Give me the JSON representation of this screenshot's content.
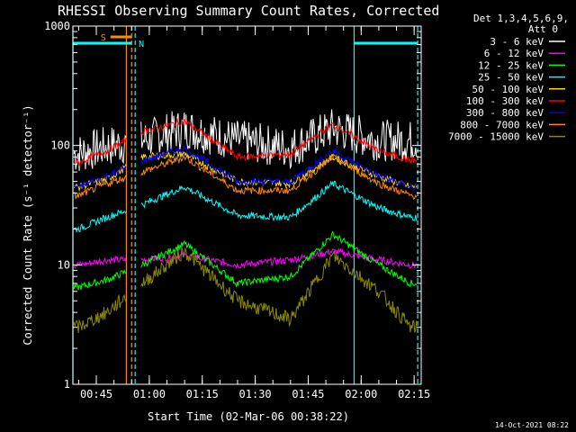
{
  "chart_data": {
    "type": "line",
    "title": "RHESSI Observing Summary Count Rates, Corrected",
    "xlabel": "Start Time (02-Mar-06 00:38:22)",
    "ylabel": "Corrected Count Rate (s⁻¹ detector⁻¹)",
    "y_scale": "log",
    "ylim": [
      1,
      1000
    ],
    "x_range_minutes": [
      "00:38:22",
      "02:17:00"
    ],
    "x_ticks": [
      "00:45",
      "01:00",
      "01:15",
      "01:30",
      "01:45",
      "02:00",
      "02:15"
    ],
    "y_ticks": [
      "1",
      "10",
      "100",
      "1000"
    ],
    "legend_header": [
      "Det 1,3,4,5,6,9,",
      "Att 0"
    ],
    "legend_position": "right",
    "footer_date": "14-Oct-2021 08:22",
    "annotations": {
      "saa_label": "S",
      "night_label": "N"
    },
    "series": [
      {
        "name": "3 - 6 keV",
        "color": "#ffffff",
        "x": [
          "00:40",
          "00:48",
          "00:58",
          "01:10",
          "01:25",
          "01:40",
          "01:52",
          "02:05",
          "02:14"
        ],
        "values": [
          86,
          98,
          110,
          140,
          110,
          95,
          140,
          110,
          110
        ]
      },
      {
        "name": "6 - 12 keV",
        "color": "#ff00ff",
        "x": [
          "00:40",
          "00:48",
          "00:58",
          "01:10",
          "01:25",
          "01:40",
          "01:52",
          "02:05",
          "02:14"
        ],
        "values": [
          10,
          11,
          11,
          12,
          10,
          11,
          13,
          11,
          10
        ]
      },
      {
        "name": "12 - 25 keV",
        "color": "#00ff00",
        "x": [
          "00:40",
          "00:48",
          "00:58",
          "01:10",
          "01:25",
          "01:40",
          "01:52",
          "02:05",
          "02:14"
        ],
        "values": [
          6.5,
          7.5,
          10,
          15,
          7,
          8,
          18,
          10,
          7
        ]
      },
      {
        "name": "25 - 50 keV",
        "color": "#00ffff",
        "x": [
          "00:40",
          "00:48",
          "00:58",
          "01:10",
          "01:25",
          "01:40",
          "01:52",
          "02:05",
          "02:14"
        ],
        "values": [
          20,
          25,
          32,
          45,
          26,
          25,
          48,
          30,
          25
        ]
      },
      {
        "name": "50 - 100 keV",
        "color": "#ffd700",
        "x": [
          "00:40",
          "00:48",
          "00:58",
          "01:10",
          "01:25",
          "01:40",
          "01:52",
          "02:05",
          "02:14"
        ],
        "values": [
          45,
          52,
          80,
          85,
          50,
          48,
          80,
          55,
          45
        ]
      },
      {
        "name": "100 - 300 keV",
        "color": "#ff0000",
        "x": [
          "00:40",
          "00:48",
          "00:58",
          "01:10",
          "01:25",
          "01:40",
          "01:52",
          "02:05",
          "02:14"
        ],
        "values": [
          72,
          90,
          130,
          160,
          80,
          85,
          150,
          90,
          75
        ]
      },
      {
        "name": "300 - 800 keV",
        "color": "#0000ff",
        "x": [
          "00:40",
          "00:48",
          "00:58",
          "01:10",
          "01:25",
          "01:40",
          "01:52",
          "02:05",
          "02:14"
        ],
        "values": [
          45,
          55,
          75,
          95,
          50,
          50,
          90,
          55,
          45
        ]
      },
      {
        "name": "800 - 7000 keV",
        "color": "#ff8c00",
        "x": [
          "00:40",
          "00:48",
          "00:58",
          "01:10",
          "01:25",
          "01:40",
          "01:52",
          "02:05",
          "02:14"
        ],
        "values": [
          38,
          48,
          60,
          80,
          42,
          42,
          80,
          48,
          38
        ]
      },
      {
        "name": "7000 - 15000 keV",
        "color": "#8b8b00",
        "x": [
          "00:40",
          "00:48",
          "00:58",
          "01:10",
          "01:25",
          "01:40",
          "01:52",
          "02:05",
          "02:14"
        ],
        "values": [
          3,
          4,
          7,
          13,
          5,
          3.5,
          12,
          6,
          3
        ]
      }
    ],
    "markers": {
      "cyan_solid_x": [
        "00:38:22",
        "01:58:00"
      ],
      "cyan_dashed_x": [
        "00:56:00",
        "02:16:00"
      ],
      "orange_solid_x": [
        "00:53:30"
      ],
      "orange_dashed_x": [
        "00:55:00"
      ],
      "saa_bar_x": [
        "00:49:00",
        "00:55:00"
      ],
      "night_bar_x": [
        [
          "00:38:22",
          "00:55:00"
        ],
        [
          "01:58:00",
          "02:16:00"
        ]
      ]
    }
  }
}
